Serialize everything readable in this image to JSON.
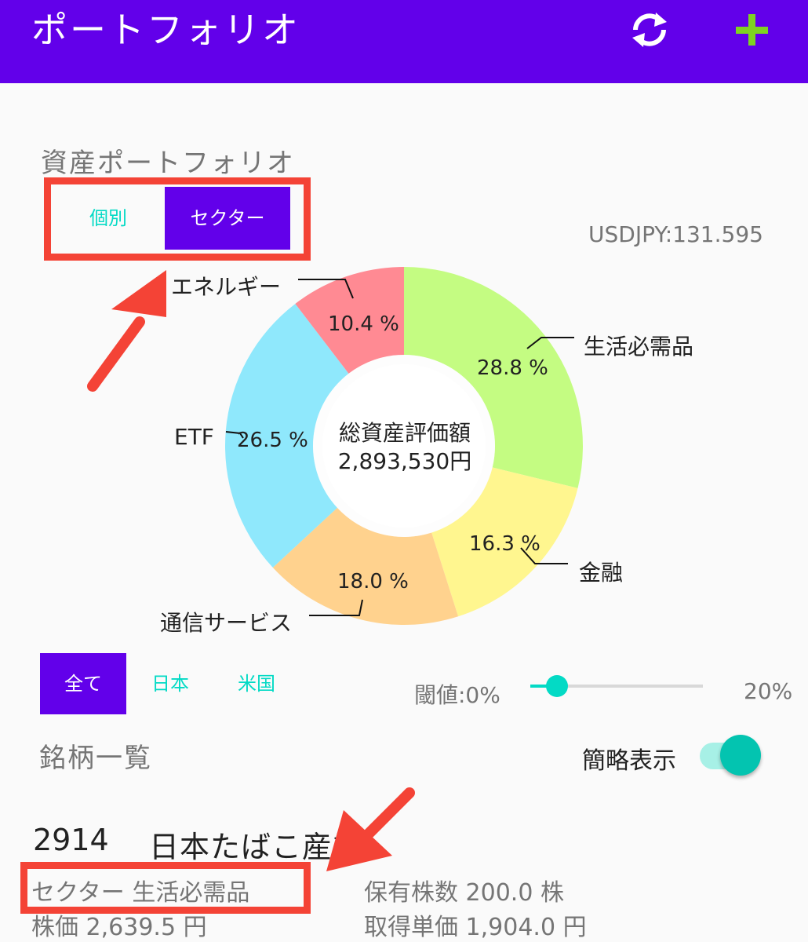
{
  "appbar": {
    "title": "ポートフォリオ",
    "refresh_icon": "refresh-icon",
    "add_icon": "plus-icon",
    "color": "#6200ea"
  },
  "portfolio": {
    "section_title": "資産ポートフォリオ",
    "tabs": [
      {
        "label": "個別",
        "selected": false
      },
      {
        "label": "セクター",
        "selected": true
      }
    ],
    "usdjpy": "USDJPY:131.595",
    "center_title": "総資産評価額",
    "center_value": "2,893,530円"
  },
  "chart_data": {
    "type": "pie",
    "donut": true,
    "slices": [
      {
        "label": "生活必需品",
        "percent_label": "28.8 %",
        "value": 28.8,
        "color": "#c4fc82"
      },
      {
        "label": "金融",
        "percent_label": "16.3 %",
        "value": 16.3,
        "color": "#fff68f"
      },
      {
        "label": "通信サービス",
        "percent_label": "18.0 %",
        "value": 18.0,
        "color": "#ffd28e"
      },
      {
        "label": "ETF",
        "percent_label": "26.5 %",
        "value": 26.5,
        "color": "#8fe8fc"
      },
      {
        "label": "エネルギー",
        "percent_label": "10.4 %",
        "value": 10.4,
        "color": "#ff8a93"
      }
    ]
  },
  "filters": {
    "options": [
      {
        "label": "全て",
        "selected": true
      },
      {
        "label": "日本",
        "selected": false
      },
      {
        "label": "米国",
        "selected": false
      }
    ],
    "threshold_label": "閾値:0%",
    "threshold_value": 0,
    "threshold_max": "20%"
  },
  "holdings": {
    "section_title": "銘柄一覧",
    "toggle_label": "簡略表示",
    "toggle_on": true,
    "items": [
      {
        "code": "2914",
        "name": "日本たばこ産業",
        "sector": "セクター 生活必需品",
        "shares": "保有株数 200.0 株",
        "price": "株価 2,639.5 円",
        "avg_cost": "取得単価 1,904.0 円"
      }
    ]
  },
  "annotations": {
    "highlight_color": "#f44336"
  }
}
